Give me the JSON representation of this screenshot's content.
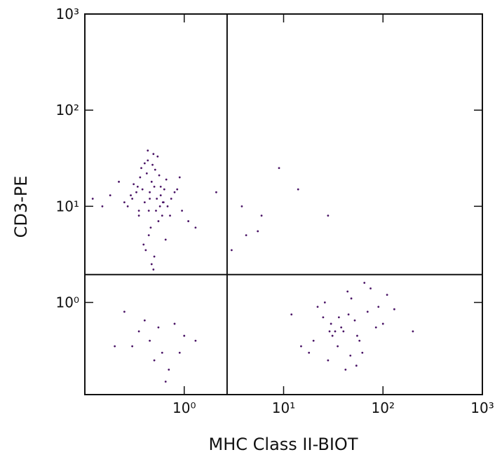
{
  "chart_data": {
    "type": "scatter",
    "x_label": "MHC Class II-BIOT",
    "y_label": "CD3-PE",
    "xscale": "log",
    "yscale": "log",
    "xlim": [
      0.1,
      1000
    ],
    "ylim": [
      0.11,
      1000
    ],
    "xticks": [
      {
        "value": 1,
        "label": "10⁰"
      },
      {
        "value": 10,
        "label": "10¹"
      },
      {
        "value": 100,
        "label": "10²"
      },
      {
        "value": 1000,
        "label": "10³"
      }
    ],
    "yticks": [
      {
        "value": 1,
        "label": "10⁰"
      },
      {
        "value": 10,
        "label": "10¹"
      },
      {
        "value": 100,
        "label": "10²"
      },
      {
        "value": 1000,
        "label": "10³"
      }
    ],
    "gates": {
      "x": 2.7,
      "y": 1.95
    },
    "series": [
      {
        "color": "#4a1466",
        "x": [
          0.45,
          0.38,
          0.52,
          0.61,
          0.33,
          0.47,
          0.55,
          0.42,
          0.68,
          0.29,
          0.5,
          0.44,
          0.36,
          0.58,
          0.72,
          0.4,
          0.48,
          0.35,
          0.63,
          0.53,
          0.46,
          0.31,
          0.57,
          0.8,
          0.25,
          0.43,
          0.66,
          0.39,
          0.51,
          0.95,
          0.18,
          0.49,
          0.6,
          0.34,
          0.74,
          0.41,
          0.56,
          0.27,
          1.1,
          0.45,
          0.37,
          0.62,
          0.5,
          0.22,
          0.85,
          0.44,
          0.54,
          0.3,
          1.3,
          0.47,
          0.15,
          0.4,
          0.58,
          0.65,
          0.35,
          2.1,
          0.49,
          0.9,
          0.12,
          0.43,
          40,
          25,
          55,
          35,
          70,
          30,
          48,
          20,
          90,
          62,
          38,
          28,
          45,
          110,
          33,
          52,
          18,
          75,
          42,
          130,
          26,
          58,
          36,
          85,
          22,
          47,
          65,
          31,
          15,
          100,
          44,
          29,
          54,
          200,
          12,
          0.45,
          0.6,
          0.35,
          0.8,
          0.5,
          0.3,
          1.0,
          0.7,
          0.25,
          0.55,
          0.9,
          0.4,
          1.3,
          0.65,
          0.2,
          9,
          14,
          28,
          6,
          5.5,
          3.8,
          4.2,
          3
        ],
        "values": [
          12,
          15,
          9,
          11,
          14,
          18,
          7,
          22,
          10,
          13,
          16,
          5,
          20,
          13,
          8,
          11,
          27,
          9,
          15,
          12,
          6,
          17,
          10,
          14,
          11,
          30,
          19,
          4,
          24,
          9,
          13,
          35,
          8,
          16,
          12,
          3.5,
          21,
          10,
          7,
          14,
          25,
          11,
          3,
          18,
          15,
          9,
          33,
          12,
          6,
          2.5,
          10,
          28,
          16,
          4.5,
          8,
          14,
          2.2,
          20,
          12,
          38,
          0.5,
          0.7,
          0.45,
          0.35,
          0.8,
          0.6,
          1.1,
          0.4,
          0.9,
          0.3,
          0.55,
          0.25,
          0.75,
          1.2,
          0.5,
          0.65,
          0.3,
          1.4,
          0.2,
          0.85,
          1.0,
          0.4,
          0.7,
          0.55,
          0.9,
          0.28,
          1.6,
          0.45,
          0.35,
          0.6,
          1.3,
          0.5,
          0.22,
          0.5,
          0.75,
          0.4,
          0.3,
          0.5,
          0.6,
          0.25,
          0.35,
          0.45,
          0.2,
          0.8,
          0.55,
          0.3,
          0.65,
          0.4,
          0.15,
          0.35,
          25,
          15,
          8,
          8,
          5.5,
          10,
          5,
          3.5
        ]
      }
    ]
  }
}
